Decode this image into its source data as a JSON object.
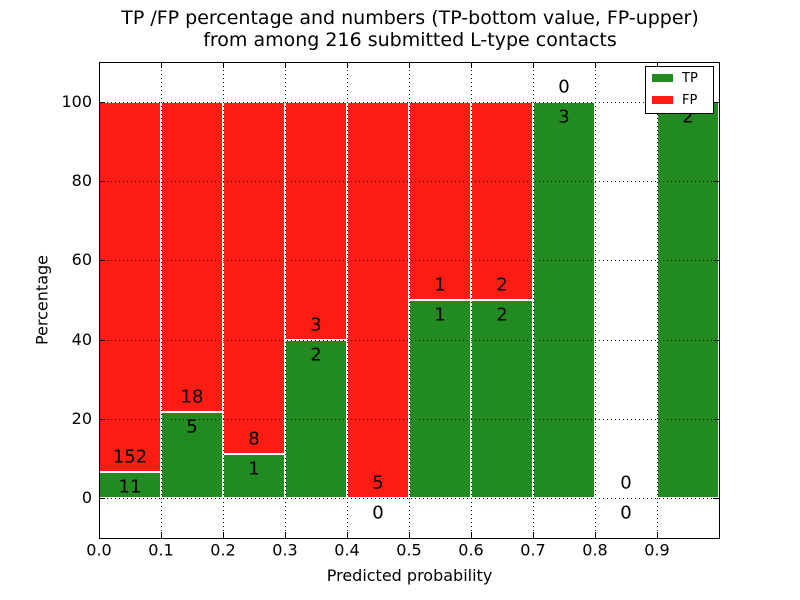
{
  "chart_data": {
    "type": "bar",
    "subtype": "stacked_percentage_histogram",
    "title": "TP /FP percentage and numbers (TP-bottom value, FP-upper) from among 216 submitted L-type contacts",
    "title_lines": [
      "TP /FP percentage and numbers (TP-bottom value, FP-upper)",
      "from among 216 submitted L-type contacts"
    ],
    "xlabel": "Predicted probability",
    "ylabel": "Percentage",
    "total_contacts": 216,
    "xlim": [
      0.0,
      1.0
    ],
    "ylim": [
      -10,
      110
    ],
    "grid": true,
    "bin_width": 0.1,
    "categories": [
      "0.0-0.1",
      "0.1-0.2",
      "0.2-0.3",
      "0.3-0.4",
      "0.4-0.5",
      "0.5-0.6",
      "0.6-0.7",
      "0.7-0.8",
      "0.8-0.9",
      "0.9-1.0"
    ],
    "series": [
      {
        "name": "TP",
        "color": "#218a21",
        "values": [
          11,
          5,
          1,
          2,
          0,
          1,
          2,
          3,
          0,
          2
        ]
      },
      {
        "name": "FP",
        "color": "#fb1d14",
        "values": [
          152,
          18,
          8,
          3,
          5,
          1,
          2,
          0,
          0,
          0
        ]
      }
    ],
    "tp_percent_of_bin": [
      6.7,
      21.7,
      11.1,
      40.0,
      0.0,
      50.0,
      50.0,
      100.0,
      0.0,
      100.0
    ],
    "x_tick_labels": [
      "0.0",
      "0.1",
      "0.2",
      "0.3",
      "0.4",
      "0.5",
      "0.6",
      "0.7",
      "0.8",
      "0.9"
    ],
    "y_tick_labels": [
      "0",
      "20",
      "40",
      "60",
      "80",
      "100"
    ],
    "legend": {
      "position": "upper right",
      "entries": [
        "TP",
        "FP"
      ]
    },
    "colors": {
      "tp": "#218a21",
      "fp": "#fb1d14",
      "bar_edge": "#ffffff",
      "grid": "#000000",
      "background": "#ffffff",
      "text": "#000000"
    }
  }
}
